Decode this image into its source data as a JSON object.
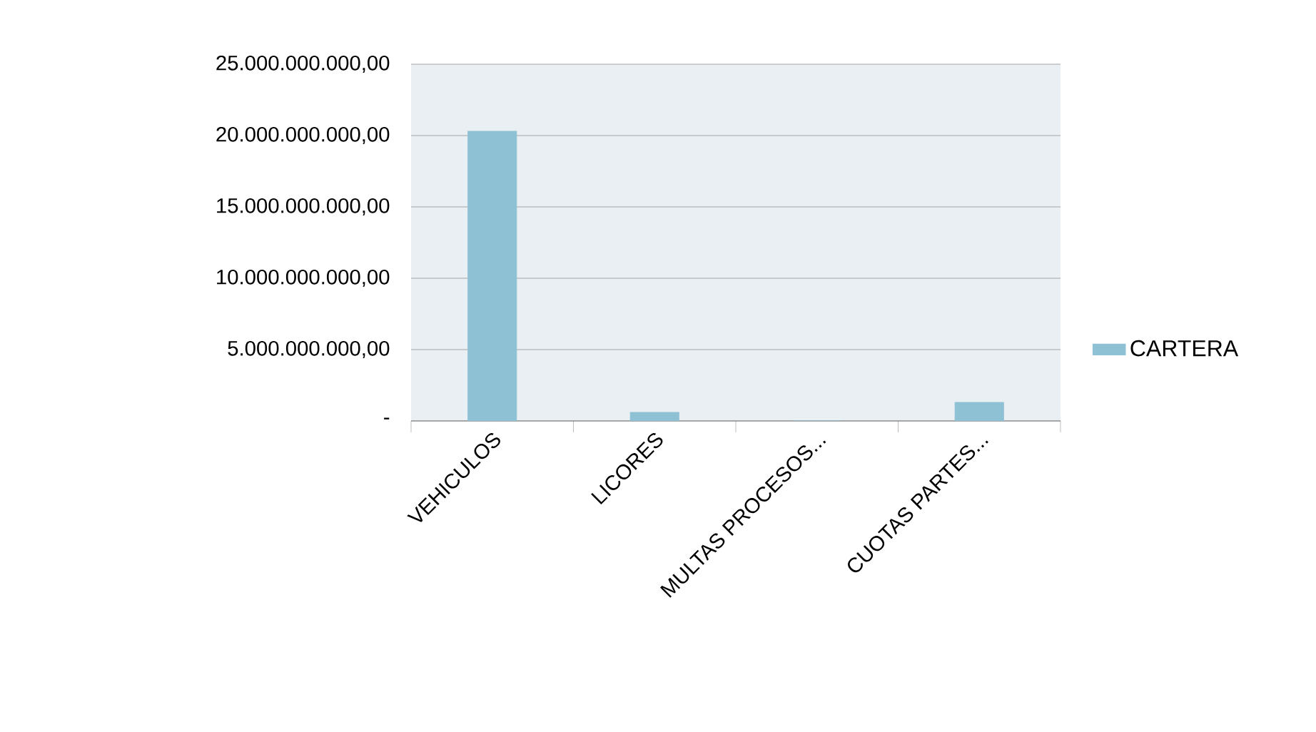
{
  "chart_data": {
    "type": "bar",
    "categories": [
      "VEHICULOS",
      "LICORES",
      "MULTAS PROCESOS...",
      "CUOTAS PARTES..."
    ],
    "series": [
      {
        "name": "CARTERA",
        "color": "#8fc1d4",
        "values": [
          20300000000,
          600000000,
          0,
          1300000000
        ]
      }
    ],
    "ylim": [
      0,
      25000000000
    ],
    "yticks": [
      {
        "value": 0,
        "label": "-"
      },
      {
        "value": 5000000000,
        "label": "5.000.000.000,00"
      },
      {
        "value": 10000000000,
        "label": "10.000.000.000,00"
      },
      {
        "value": 15000000000,
        "label": "15.000.000.000,00"
      },
      {
        "value": 20000000000,
        "label": "20.000.000.000,00"
      },
      {
        "value": 25000000000,
        "label": "25.000.000.000,00"
      }
    ],
    "grid": "y",
    "legend": "right"
  }
}
